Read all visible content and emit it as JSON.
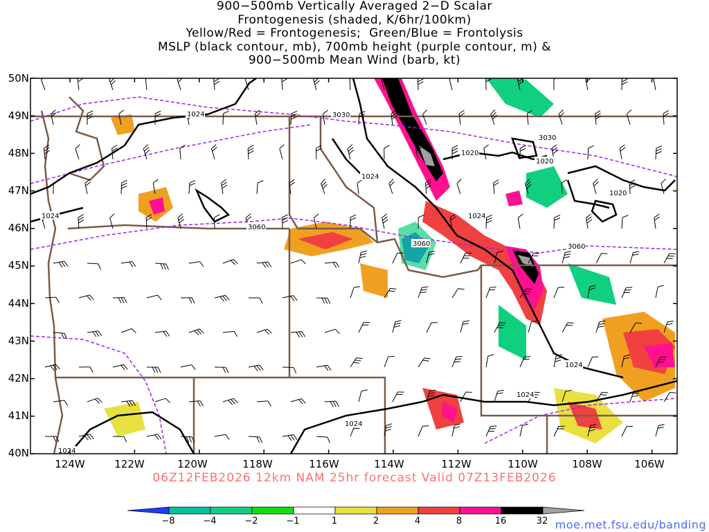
{
  "title": {
    "lines": [
      "900−500mb Vertically Averaged 2−D Scalar",
      "Frontogenesis (shaded, K/6hr/100km)",
      "Yellow/Red = Frontogenesis;  Green/Blue = Frontolysis",
      "MSLP (black contour, mb), 700mb height (purple contour, m) &",
      "900−500mb Mean Wind (barb, kt)"
    ]
  },
  "map": {
    "lat_labels": [
      "50N",
      "49N",
      "48N",
      "47N",
      "46N",
      "45N",
      "44N",
      "43N",
      "42N",
      "41N",
      "40N"
    ],
    "lon_labels": [
      "124W",
      "122W",
      "120W",
      "118W",
      "116W",
      "114W",
      "112W",
      "110W",
      "108W",
      "106W"
    ],
    "lat_range": [
      40,
      50
    ],
    "lon_range": [
      -125,
      -105
    ],
    "mslp_labels": [
      "1024",
      "1024",
      "1024",
      "1024",
      "1024",
      "1024",
      "1024",
      "1020",
      "1020",
      "1020",
      "1024"
    ],
    "height_labels": [
      "3030",
      "3030",
      "3060",
      "3060",
      "3060"
    ]
  },
  "valid_line": "06Z12FEB2026 12km NAM 25hr forecast Valid 07Z13FEB2026",
  "colorbar": {
    "labels": [
      "−8",
      "−4",
      "−2",
      "−1",
      "1",
      "2",
      "4",
      "8",
      "16",
      "32"
    ],
    "colors": [
      "#1f3cff",
      "#00c0a0",
      "#10d080",
      "#10e010",
      "#ffffff",
      "#e8e040",
      "#f0a020",
      "#f04040",
      "#ff1090",
      "#000000",
      "#a0a0a0"
    ]
  },
  "credit": "moe.met.fsu.edu/banding"
}
